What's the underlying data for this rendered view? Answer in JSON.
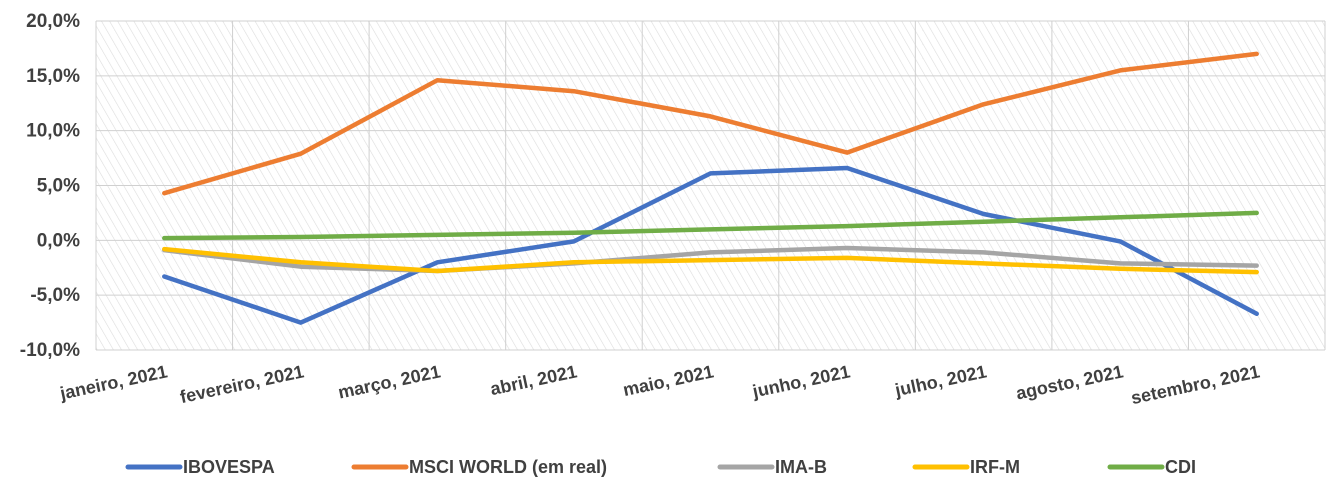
{
  "chart_data": {
    "type": "line",
    "categories": [
      "janeiro, 2021",
      "fevereiro, 2021",
      "março, 2021",
      "abril, 2021",
      "maio, 2021",
      "junho, 2021",
      "julho, 2021",
      "agosto, 2021",
      "setembro, 2021"
    ],
    "yticks": [
      "-10,0%",
      "-5,0%",
      "0,0%",
      "5,0%",
      "10,0%",
      "15,0%",
      "20,0%"
    ],
    "ylim": [
      -10,
      20
    ],
    "grid": true,
    "legend_position": "bottom",
    "series": [
      {
        "name": "IBOVESPA",
        "color": "#4472C4",
        "values": [
          -3.3,
          -7.5,
          -2.0,
          -0.1,
          6.1,
          6.6,
          2.4,
          -0.1,
          -6.7
        ]
      },
      {
        "name": "MSCI WORLD (em real)",
        "color": "#ED7D31",
        "values": [
          4.3,
          7.9,
          14.6,
          13.6,
          11.3,
          8.0,
          12.4,
          15.5,
          17.0
        ]
      },
      {
        "name": "IMA-B",
        "color": "#A5A5A5",
        "values": [
          -0.9,
          -2.4,
          -2.8,
          -2.1,
          -1.1,
          -0.7,
          -1.1,
          -2.1,
          -2.3
        ]
      },
      {
        "name": "IRF-M",
        "color": "#FFC000",
        "values": [
          -0.8,
          -2.0,
          -2.8,
          -2.0,
          -1.8,
          -1.6,
          -2.1,
          -2.6,
          -2.9
        ]
      },
      {
        "name": "CDI",
        "color": "#70AD47",
        "values": [
          0.2,
          0.3,
          0.5,
          0.7,
          1.0,
          1.3,
          1.7,
          2.1,
          2.5
        ]
      }
    ]
  }
}
